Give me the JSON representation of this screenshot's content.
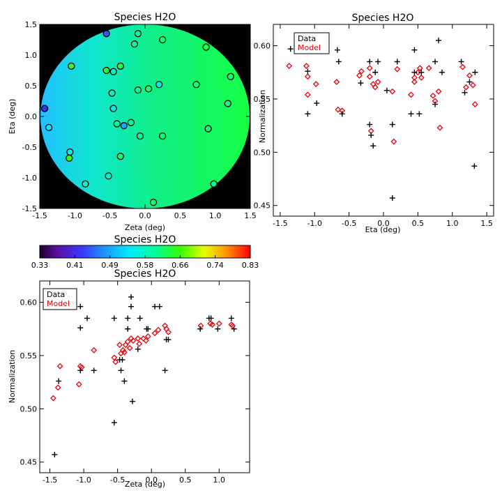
{
  "map": {
    "title": "Species H2O",
    "xlabel": "Zeta (deg)",
    "ylabel": "Eta (deg)",
    "xlim": [
      -1.5,
      1.5
    ],
    "ylim": [
      -1.5,
      1.5
    ],
    "xticks": [
      "-1.5",
      "-1.0",
      "-0.5",
      "0.0",
      "0.5",
      "1.0",
      "1.5"
    ],
    "yticks": [
      "-1.5",
      "-1.0",
      "-0.5",
      "0.0",
      "0.5",
      "1.0",
      "1.5"
    ]
  },
  "colorbar": {
    "title": "Species H2O",
    "ticks": [
      "0.33",
      "0.41",
      "0.49",
      "0.58",
      "0.66",
      "0.74",
      "0.83"
    ]
  },
  "eta_plot": {
    "title": "Species H2O",
    "xlabel": "Eta (deg)",
    "ylabel": "Normalization",
    "xlim": [
      -1.6,
      1.6
    ],
    "ylim": [
      0.44,
      0.62
    ],
    "xticks": [
      "-1.5",
      "-1.0",
      "-0.5",
      "0.0",
      "0.5",
      "1.0",
      "1.5"
    ],
    "yticks": [
      "0.45",
      "0.50",
      "0.55",
      "0.60"
    ],
    "legend": {
      "data": "Data",
      "model": "Model"
    }
  },
  "zeta_plot": {
    "title": "Species H2O",
    "xlabel": "Zeta (deg)",
    "ylabel": "Normalization",
    "xlim": [
      -1.65,
      1.45
    ],
    "ylim": [
      0.44,
      0.62
    ],
    "xticks": [
      "-1.5",
      "-1.0",
      "-0.5",
      "0.0",
      "0.5",
      "1.0"
    ],
    "yticks": [
      "0.45",
      "0.50",
      "0.55",
      "0.60"
    ],
    "legend": {
      "data": "Data",
      "model": "Model"
    }
  },
  "colors": {
    "data": "#000000",
    "model": "#e8000b",
    "background": "#000000"
  },
  "chart_data": [
    {
      "type": "scatter",
      "title": "Species H2O",
      "xlabel": "Zeta (deg)",
      "ylabel": "Eta (deg)",
      "xlim": [
        -1.5,
        1.5
      ],
      "ylim": [
        -1.5,
        1.5
      ],
      "points": [
        {
          "x": -0.55,
          "y": 1.35,
          "v": 0.45
        },
        {
          "x": -0.1,
          "y": 1.35,
          "v": 0.6
        },
        {
          "x": 0.25,
          "y": 1.25,
          "v": 0.62
        },
        {
          "x": -0.15,
          "y": 1.18,
          "v": 0.6
        },
        {
          "x": 0.87,
          "y": 1.13,
          "v": 0.64
        },
        {
          "x": -1.05,
          "y": 0.82,
          "v": 0.64
        },
        {
          "x": -0.55,
          "y": 0.75,
          "v": 0.64
        },
        {
          "x": -0.45,
          "y": 0.73,
          "v": 0.58
        },
        {
          "x": -0.35,
          "y": 0.82,
          "v": 0.64
        },
        {
          "x": 1.22,
          "y": 0.65,
          "v": 0.62
        },
        {
          "x": 0.2,
          "y": 0.52,
          "v": 0.56
        },
        {
          "x": 0.73,
          "y": 0.52,
          "v": 0.62
        },
        {
          "x": -0.47,
          "y": 0.38,
          "v": 0.58
        },
        {
          "x": -0.1,
          "y": 0.43,
          "v": 0.6
        },
        {
          "x": 0.05,
          "y": 0.45,
          "v": 0.62
        },
        {
          "x": 1.18,
          "y": 0.21,
          "v": 0.62
        },
        {
          "x": -0.45,
          "y": 0.13,
          "v": 0.56
        },
        {
          "x": -1.43,
          "y": 0.13,
          "v": 0.42
        },
        {
          "x": -1.37,
          "y": -0.18,
          "v": 0.54
        },
        {
          "x": -0.4,
          "y": -0.12,
          "v": 0.6
        },
        {
          "x": -0.3,
          "y": -0.15,
          "v": 0.5
        },
        {
          "x": -0.2,
          "y": -0.1,
          "v": 0.6
        },
        {
          "x": 0.9,
          "y": -0.2,
          "v": 0.62
        },
        {
          "x": -0.07,
          "y": -0.32,
          "v": 0.6
        },
        {
          "x": 0.25,
          "y": -0.32,
          "v": 0.62
        },
        {
          "x": -1.07,
          "y": -0.58,
          "v": 0.56
        },
        {
          "x": -1.08,
          "y": -0.68,
          "v": 0.66
        },
        {
          "x": -0.35,
          "y": -0.65,
          "v": 0.62
        },
        {
          "x": -0.52,
          "y": -0.97,
          "v": 0.58
        },
        {
          "x": -0.85,
          "y": -1.1,
          "v": 0.58
        },
        {
          "x": 0.98,
          "y": -1.1,
          "v": 0.6
        },
        {
          "x": 0.12,
          "y": -1.4,
          "v": 0.62
        }
      ]
    },
    {
      "type": "scatter",
      "title": "Species H2O",
      "xlabel": "Eta (deg)",
      "ylabel": "Normalization",
      "xlim": [
        -1.6,
        1.6
      ],
      "ylim": [
        0.44,
        0.62
      ],
      "series": [
        {
          "name": "Data",
          "marker": "plus",
          "points": [
            [
              -1.35,
              0.597
            ],
            [
              -1.1,
              0.576
            ],
            [
              -1.1,
              0.536
            ],
            [
              -0.97,
              0.546
            ],
            [
              -0.67,
              0.596
            ],
            [
              -0.65,
              0.585
            ],
            [
              -0.6,
              0.536
            ],
            [
              -0.33,
              0.565
            ],
            [
              -0.2,
              0.585
            ],
            [
              -0.2,
              0.526
            ],
            [
              -0.18,
              0.516
            ],
            [
              -0.15,
              0.506
            ],
            [
              -0.12,
              0.575
            ],
            [
              -0.08,
              0.585
            ],
            [
              0.13,
              0.526
            ],
            [
              0.13,
              0.457
            ],
            [
              0.2,
              0.585
            ],
            [
              0.4,
              0.536
            ],
            [
              0.45,
              0.596
            ],
            [
              0.45,
              0.575
            ],
            [
              0.52,
              0.536
            ],
            [
              0.55,
              0.575
            ],
            [
              0.75,
              0.585
            ],
            [
              0.75,
              0.545
            ],
            [
              0.8,
              0.605
            ],
            [
              0.85,
              0.575
            ],
            [
              1.13,
              0.585
            ],
            [
              1.18,
              0.556
            ],
            [
              1.25,
              0.566
            ],
            [
              1.32,
              0.487
            ],
            [
              1.33,
              0.575
            ],
            [
              0.05,
              0.558
            ]
          ]
        },
        {
          "name": "Model",
          "marker": "diamond",
          "points": [
            [
              -1.37,
              0.581
            ],
            [
              -1.12,
              0.581
            ],
            [
              -1.1,
              0.571
            ],
            [
              -1.1,
              0.554
            ],
            [
              -0.98,
              0.564
            ],
            [
              -0.68,
              0.566
            ],
            [
              -0.66,
              0.54
            ],
            [
              -0.6,
              0.539
            ],
            [
              -0.35,
              0.572
            ],
            [
              -0.32,
              0.576
            ],
            [
              -0.2,
              0.579
            ],
            [
              -0.2,
              0.571
            ],
            [
              -0.18,
              0.52
            ],
            [
              -0.15,
              0.564
            ],
            [
              -0.12,
              0.561
            ],
            [
              -0.08,
              0.566
            ],
            [
              0.13,
              0.557
            ],
            [
              0.15,
              0.51
            ],
            [
              0.2,
              0.578
            ],
            [
              0.4,
              0.554
            ],
            [
              0.45,
              0.566
            ],
            [
              0.45,
              0.57
            ],
            [
              0.5,
              0.575
            ],
            [
              0.53,
              0.579
            ],
            [
              0.55,
              0.57
            ],
            [
              0.66,
              0.579
            ],
            [
              0.72,
              0.553
            ],
            [
              0.75,
              0.548
            ],
            [
              0.8,
              0.557
            ],
            [
              0.82,
              0.523
            ],
            [
              1.15,
              0.58
            ],
            [
              1.2,
              0.561
            ],
            [
              1.25,
              0.572
            ],
            [
              1.3,
              0.563
            ],
            [
              1.33,
              0.545
            ]
          ]
        }
      ]
    },
    {
      "type": "scatter",
      "title": "Species H2O",
      "xlabel": "Zeta (deg)",
      "ylabel": "Normalization",
      "xlim": [
        -1.65,
        1.45
      ],
      "ylim": [
        0.44,
        0.62
      ],
      "series": [
        {
          "name": "Data",
          "marker": "plus",
          "points": [
            [
              -1.43,
              0.457
            ],
            [
              -1.37,
              0.526
            ],
            [
              -1.05,
              0.596
            ],
            [
              -1.05,
              0.576
            ],
            [
              -1.05,
              0.536
            ],
            [
              -0.85,
              0.536
            ],
            [
              -0.55,
              0.585
            ],
            [
              -0.55,
              0.487
            ],
            [
              -0.47,
              0.546
            ],
            [
              -0.45,
              0.536
            ],
            [
              -0.43,
              0.546
            ],
            [
              -0.4,
              0.526
            ],
            [
              -0.35,
              0.575
            ],
            [
              -0.35,
              0.585
            ],
            [
              -0.3,
              0.605
            ],
            [
              -0.3,
              0.596
            ],
            [
              -0.28,
              0.507
            ],
            [
              -0.2,
              0.556
            ],
            [
              -0.17,
              0.585
            ],
            [
              -0.07,
              0.575
            ],
            [
              -0.05,
              0.575
            ],
            [
              0.05,
              0.596
            ],
            [
              0.12,
              0.596
            ],
            [
              0.2,
              0.536
            ],
            [
              0.22,
              0.565
            ],
            [
              0.25,
              0.565
            ],
            [
              0.72,
              0.575
            ],
            [
              0.85,
              0.585
            ],
            [
              0.88,
              0.585
            ],
            [
              0.98,
              0.575
            ],
            [
              1.18,
              0.585
            ],
            [
              1.22,
              0.575
            ],
            [
              -0.95,
              0.585
            ]
          ]
        },
        {
          "name": "Model",
          "marker": "diamond",
          "points": [
            [
              -1.45,
              0.51
            ],
            [
              -1.38,
              0.52
            ],
            [
              -1.35,
              0.54
            ],
            [
              -1.07,
              0.523
            ],
            [
              -1.05,
              0.54
            ],
            [
              -1.03,
              0.539
            ],
            [
              -0.85,
              0.555
            ],
            [
              -0.55,
              0.548
            ],
            [
              -0.53,
              0.544
            ],
            [
              -0.47,
              0.56
            ],
            [
              -0.45,
              0.552
            ],
            [
              -0.42,
              0.555
            ],
            [
              -0.4,
              0.553
            ],
            [
              -0.38,
              0.56
            ],
            [
              -0.35,
              0.563
            ],
            [
              -0.32,
              0.557
            ],
            [
              -0.3,
              0.566
            ],
            [
              -0.27,
              0.564
            ],
            [
              -0.2,
              0.566
            ],
            [
              -0.18,
              0.561
            ],
            [
              -0.12,
              0.566
            ],
            [
              -0.08,
              0.564
            ],
            [
              -0.05,
              0.568
            ],
            [
              0.05,
              0.571
            ],
            [
              0.1,
              0.574
            ],
            [
              0.2,
              0.578
            ],
            [
              0.22,
              0.575
            ],
            [
              0.25,
              0.572
            ],
            [
              0.73,
              0.578
            ],
            [
              0.87,
              0.58
            ],
            [
              0.9,
              0.579
            ],
            [
              1.0,
              0.58
            ],
            [
              1.18,
              0.579
            ],
            [
              1.2,
              0.578
            ]
          ]
        }
      ]
    }
  ]
}
